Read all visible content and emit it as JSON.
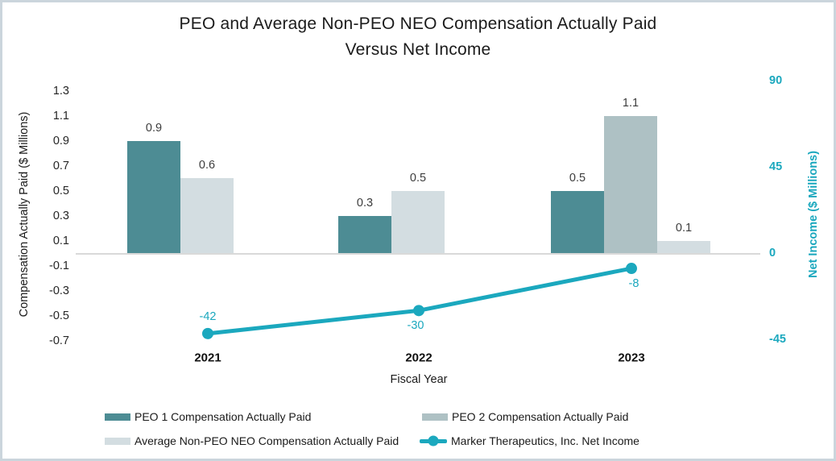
{
  "chart_data": {
    "type": "combo-bar-line",
    "title_line1": "PEO and Average Non-PEO NEO Compensation Actually Paid",
    "title_line2": "Versus Net Income",
    "xlabel": "Fiscal Year",
    "categories": [
      "2021",
      "2022",
      "2023"
    ],
    "series": [
      {
        "id": "peo1",
        "name": "PEO 1 Compensation Actually Paid",
        "type": "bar",
        "axis": "left",
        "color": "#4D8C94",
        "values": [
          0.9,
          0.3,
          0.5
        ]
      },
      {
        "id": "peo2",
        "name": "PEO 2 Compensation Actually Paid",
        "type": "bar",
        "axis": "left",
        "color": "#AEC1C4",
        "values": [
          null,
          null,
          1.1
        ]
      },
      {
        "id": "avg-neo",
        "name": "Average Non-PEO NEO Compensation Actually Paid",
        "type": "bar",
        "axis": "left",
        "color": "#D3DDE1",
        "values": [
          0.6,
          0.5,
          0.1
        ]
      },
      {
        "id": "net-income",
        "name": "Marker Therapeutics, Inc. Net Income",
        "type": "line",
        "axis": "right",
        "color": "#1BA8BE",
        "values": [
          -42,
          -30,
          -8
        ]
      }
    ],
    "axis_left": {
      "label": "Compensation Actually Paid ($ Millions)",
      "min": -0.7,
      "max": 1.3,
      "step": 0.2,
      "ticks": [
        1.3,
        1.1,
        0.9,
        0.7,
        0.5,
        0.3,
        0.1,
        -0.1,
        -0.3,
        -0.5,
        -0.7
      ]
    },
    "axis_right": {
      "label": "Net Income ($ Millions)",
      "min": -45,
      "max": 90,
      "step": 45,
      "ticks": [
        90,
        45,
        0,
        -45
      ]
    },
    "gridlines": false,
    "legend_position": "bottom",
    "frame_border_color": "#CBD5DC",
    "axis_line_color": "#D9D9D9"
  }
}
